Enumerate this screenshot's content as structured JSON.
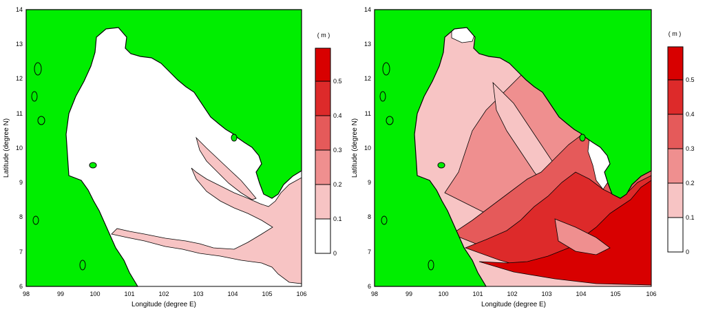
{
  "colors": {
    "land": "#00ee00",
    "sea_0": "#ffffff",
    "sea_1": "#f7c4c4",
    "sea_2": "#ef8f8f",
    "sea_3": "#e55a5a",
    "sea_4": "#dd2a2a",
    "sea_5": "#d80000",
    "coast": "#000000"
  },
  "panels": [
    {
      "xlabel": "Longitude (degree E)",
      "ylabel": "Latitude (degree N)",
      "x_ticks": [
        "98",
        "99",
        "100",
        "101",
        "102",
        "103",
        "104",
        "105",
        "106"
      ],
      "y_ticks": [
        "6",
        "7",
        "8",
        "9",
        "10",
        "11",
        "12",
        "13",
        "14"
      ],
      "colorbar": {
        "unit": "( m )",
        "labels": [
          "0",
          "0.1",
          "0.2",
          "0.3",
          "0.4",
          "0.5"
        ]
      }
    },
    {
      "xlabel": "Longitude (degree E)",
      "ylabel": "Latitude (degree N)",
      "x_ticks": [
        "98",
        "99",
        "100",
        "101",
        "102",
        "103",
        "104",
        "105",
        "106"
      ],
      "y_ticks": [
        "6",
        "7",
        "8",
        "9",
        "10",
        "11",
        "12",
        "13",
        "14"
      ],
      "colorbar": {
        "unit": "( m )",
        "labels": [
          "0",
          "0.1",
          "0.2",
          "0.3",
          "0.4",
          "0.5"
        ]
      }
    }
  ],
  "chart_data": {
    "type": "heatmap",
    "description_scale": "wave height / amplitude contour levels",
    "x_range": [
      98,
      106
    ],
    "y_range": [
      6,
      14
    ],
    "levels": [
      0,
      0.1,
      0.2,
      0.3,
      0.4,
      0.5
    ],
    "panels_count": 2
  }
}
